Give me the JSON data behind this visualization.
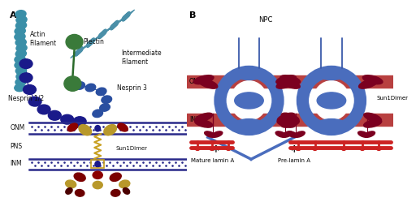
{
  "bg_color": "#ffffff",
  "panel_a_label": "A",
  "panel_b_label": "B",
  "labels": {
    "actin": "Actin\nFilament",
    "intermediate": "Intermediate\nFilament",
    "plectin": "Plectin",
    "nesprin3": "Nesprin 3",
    "nesprin12": "Nesprin 1/2",
    "ONM": "ONM",
    "PNS": "PNS",
    "INM": "INM",
    "sun1dimer_a": "Sun1Dimer",
    "NPC": "NPC",
    "sun1dimer_b": "Sun1Dimer",
    "mature_lamin": "Mature lamin A",
    "pre_lamin": "Pre-lamin A"
  },
  "colors": {
    "actin": "#3a8fa8",
    "intermediate": "#4a8fa8",
    "plectin": "#3a7a3a",
    "nesprin3": "#2a4fa0",
    "nesprin12": "#1a1a8a",
    "membrane": "#2a2a8a",
    "sun1_coil": "#c8a020",
    "sun1_box": "#c8a020",
    "gold": "#b8982a",
    "dark_red": "#7B0000",
    "crimson": "#8B0000",
    "blue_oval": "#4a6dbd",
    "blue_ring": "#4a6dbd",
    "npc_line": "#3a5aaa",
    "onm_bar": "#b84040",
    "red_lamin": "#cc2222",
    "text": "#111111"
  },
  "font_size": 5.5,
  "label_font_size": 8
}
